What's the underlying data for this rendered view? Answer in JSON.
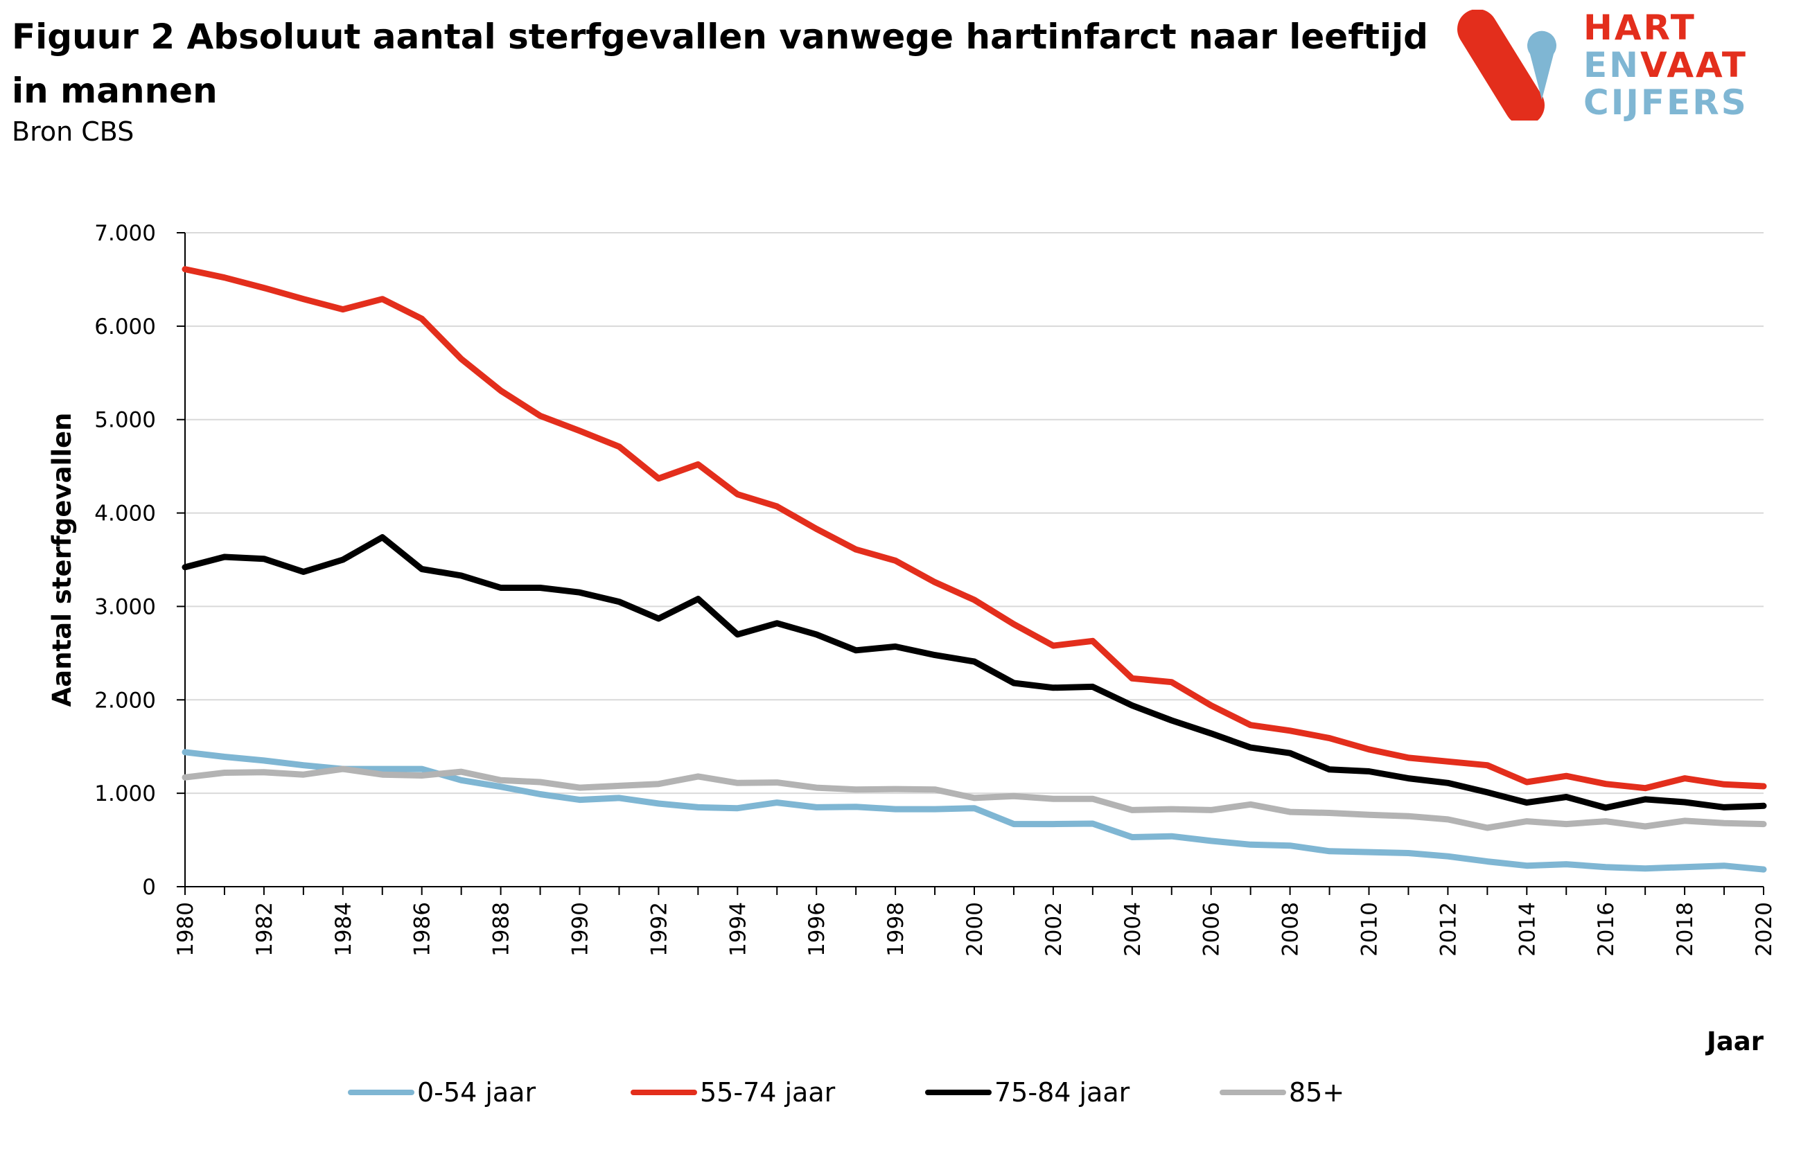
{
  "header": {
    "title": "Figuur 2 Absoluut aantal sterfgevallen vanwege hartinfarct naar leeftijd in mannen",
    "subtitle": "Bron CBS"
  },
  "logo": {
    "line1": [
      {
        "text": "HART",
        "color": "#e32e1c"
      }
    ],
    "line2": [
      {
        "text": "EN",
        "color": "#7fb6d3"
      },
      {
        "text": "VAAT",
        "color": "#e32e1c"
      }
    ],
    "line3": [
      {
        "text": "CIJFERS",
        "color": "#7fb6d3"
      }
    ],
    "colors": {
      "red": "#e32e1c",
      "blue": "#7fb6d3"
    }
  },
  "chart_data": {
    "type": "line",
    "ylabel": "Aantal sterfgevallen",
    "xlabel": "Jaar",
    "ylim": [
      0,
      7000
    ],
    "yticks": [
      0,
      1000,
      2000,
      3000,
      4000,
      5000,
      6000,
      7000
    ],
    "ytick_labels": [
      "0",
      "1.000",
      "2.000",
      "3.000",
      "4.000",
      "5.000",
      "6.000",
      "7.000"
    ],
    "xlim": [
      1980,
      2020
    ],
    "xticks": [
      1980,
      1982,
      1984,
      1986,
      1988,
      1990,
      1992,
      1994,
      1996,
      1998,
      2000,
      2002,
      2004,
      2006,
      2008,
      2010,
      2012,
      2014,
      2016,
      2018,
      2020
    ],
    "x": [
      1980,
      1981,
      1982,
      1983,
      1984,
      1985,
      1986,
      1987,
      1988,
      1989,
      1990,
      1991,
      1992,
      1993,
      1994,
      1995,
      1996,
      1997,
      1998,
      1999,
      2000,
      2001,
      2002,
      2003,
      2004,
      2005,
      2006,
      2007,
      2008,
      2009,
      2010,
      2011,
      2012,
      2013,
      2014,
      2015,
      2016,
      2017,
      2018,
      2019,
      2020
    ],
    "grid": "horizontal",
    "legend_position": "bottom",
    "series": [
      {
        "name": "0-54 jaar",
        "color": "#7fb6d3",
        "values": [
          1440,
          1390,
          1350,
          1300,
          1260,
          1260,
          1260,
          1140,
          1070,
          990,
          930,
          950,
          890,
          850,
          840,
          900,
          850,
          855,
          830,
          830,
          840,
          670,
          670,
          675,
          530,
          540,
          490,
          450,
          440,
          380,
          370,
          360,
          325,
          270,
          225,
          240,
          210,
          195,
          210,
          225,
          185
        ]
      },
      {
        "name": "55-74 jaar",
        "color": "#e32e1c",
        "values": [
          6610,
          6520,
          6410,
          6290,
          6180,
          6290,
          6080,
          5650,
          5310,
          5040,
          4880,
          4710,
          4370,
          4520,
          4200,
          4070,
          3830,
          3610,
          3490,
          3260,
          3070,
          2810,
          2580,
          2630,
          2230,
          2190,
          1940,
          1730,
          1670,
          1590,
          1470,
          1380,
          1340,
          1300,
          1120,
          1185,
          1100,
          1055,
          1160,
          1095,
          1075
        ]
      },
      {
        "name": "75-84 jaar",
        "color": "#000000",
        "values": [
          3420,
          3530,
          3510,
          3370,
          3500,
          3740,
          3400,
          3330,
          3200,
          3200,
          3150,
          3050,
          2870,
          3080,
          2700,
          2820,
          2700,
          2530,
          2570,
          2480,
          2410,
          2180,
          2130,
          2140,
          1940,
          1780,
          1640,
          1490,
          1430,
          1255,
          1235,
          1160,
          1110,
          1010,
          900,
          960,
          845,
          935,
          905,
          850,
          865
        ]
      },
      {
        "name": "85+",
        "color": "#b3b3b3",
        "values": [
          1170,
          1220,
          1225,
          1200,
          1260,
          1200,
          1190,
          1230,
          1140,
          1120,
          1060,
          1080,
          1100,
          1180,
          1110,
          1115,
          1060,
          1040,
          1045,
          1040,
          950,
          970,
          940,
          940,
          820,
          830,
          820,
          880,
          800,
          790,
          770,
          755,
          720,
          630,
          700,
          670,
          700,
          645,
          705,
          680,
          670
        ]
      }
    ]
  }
}
